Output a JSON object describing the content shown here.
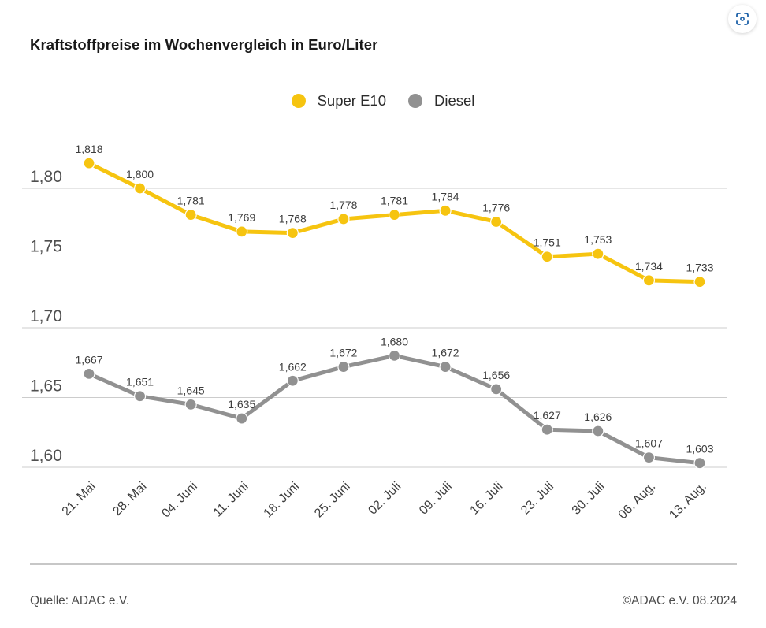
{
  "header": {
    "title": "Kraftstoffpreise im Wochenvergleich in Euro/Liter"
  },
  "legend": {
    "items": [
      {
        "label": "Super E10",
        "color": "#F6C410"
      },
      {
        "label": "Diesel",
        "color": "#919191"
      }
    ]
  },
  "chart_data": {
    "type": "line",
    "title": "Kraftstoffpreise im Wochenvergleich in Euro/Liter",
    "xlabel": "",
    "ylabel": "Euro/Liter",
    "grid": true,
    "legend_position": "top-center",
    "ylim": [
      1.58,
      1.83
    ],
    "categories": [
      "21. Mai",
      "28. Mai",
      "04. Juni",
      "11. Juni",
      "18. Juni",
      "25. Juni",
      "02. Juli",
      "09. Juli",
      "16. Juli",
      "23. Juli",
      "30. Juli",
      "06. Aug.",
      "13. Aug."
    ],
    "yticks": [
      {
        "value": 1.8,
        "label": "1,80"
      },
      {
        "value": 1.75,
        "label": "1,75"
      },
      {
        "value": 1.7,
        "label": "1,70"
      },
      {
        "value": 1.65,
        "label": "1,65"
      },
      {
        "value": 1.6,
        "label": "1,60"
      }
    ],
    "series": [
      {
        "name": "Super E10",
        "color": "#F6C410",
        "values": [
          1.818,
          1.8,
          1.781,
          1.769,
          1.768,
          1.778,
          1.781,
          1.784,
          1.776,
          1.751,
          1.753,
          1.734,
          1.733
        ],
        "display_values": [
          "1,818",
          "1,800",
          "1,781",
          "1,769",
          "1,768",
          "1,778",
          "1,781",
          "1,784",
          "1,776",
          "1,751",
          "1,753",
          "1,734",
          "1,733"
        ]
      },
      {
        "name": "Diesel",
        "color": "#919191",
        "values": [
          1.667,
          1.651,
          1.645,
          1.635,
          1.662,
          1.672,
          1.68,
          1.672,
          1.656,
          1.627,
          1.626,
          1.607,
          1.603
        ],
        "display_values": [
          "1,667",
          "1,651",
          "1,645",
          "1,635",
          "1,662",
          "1,672",
          "1,680",
          "1,672",
          "1,656",
          "1,627",
          "1,626",
          "1,607",
          "1,603"
        ]
      }
    ]
  },
  "footer": {
    "source": "Quelle: ADAC e.V.",
    "copyright": "©ADAC e.V. 08.2024"
  },
  "colors": {
    "accent_yellow": "#F6C410",
    "accent_gray": "#919191",
    "gridline": "#cccccc",
    "icon_blue": "#1E62A9"
  }
}
